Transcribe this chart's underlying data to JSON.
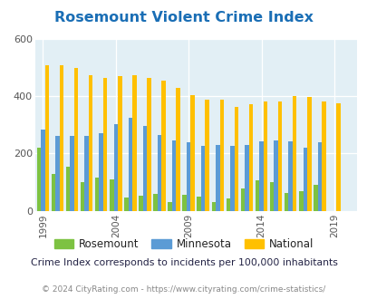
{
  "title": "Rosemount Violent Crime Index",
  "years": [
    1999,
    2000,
    2001,
    2002,
    2003,
    2004,
    2005,
    2006,
    2007,
    2008,
    2009,
    2010,
    2011,
    2012,
    2013,
    2014,
    2015,
    2016,
    2017,
    2018,
    2019,
    2020
  ],
  "rosemount_vals": [
    220,
    130,
    155,
    100,
    115,
    110,
    45,
    52,
    60,
    32,
    55,
    48,
    30,
    43,
    78,
    105,
    100,
    62,
    70,
    90,
    0,
    0
  ],
  "minnesota_vals": [
    285,
    262,
    262,
    262,
    270,
    302,
    325,
    295,
    265,
    247,
    240,
    225,
    230,
    228,
    230,
    243,
    245,
    242,
    220,
    238,
    0,
    0
  ],
  "national_vals": [
    507,
    507,
    498,
    472,
    465,
    470,
    472,
    464,
    455,
    428,
    404,
    389,
    387,
    362,
    372,
    382,
    383,
    399,
    396,
    382,
    376,
    0
  ],
  "rosemount_color": "#7dc242",
  "minnesota_color": "#5b9bd5",
  "national_color": "#ffc000",
  "bg_color": "#e2eff5",
  "title_color": "#1a6eb5",
  "ylabel_max": 600,
  "yticks": [
    0,
    200,
    400,
    600
  ],
  "xtick_years": [
    1999,
    2004,
    2009,
    2014,
    2019
  ],
  "subtitle": "Crime Index corresponds to incidents per 100,000 inhabitants",
  "footer": "© 2024 CityRating.com - https://www.cityrating.com/crime-statistics/",
  "legend_labels": [
    "Rosemount",
    "Minnesota",
    "National"
  ],
  "bar_width": 0.28
}
